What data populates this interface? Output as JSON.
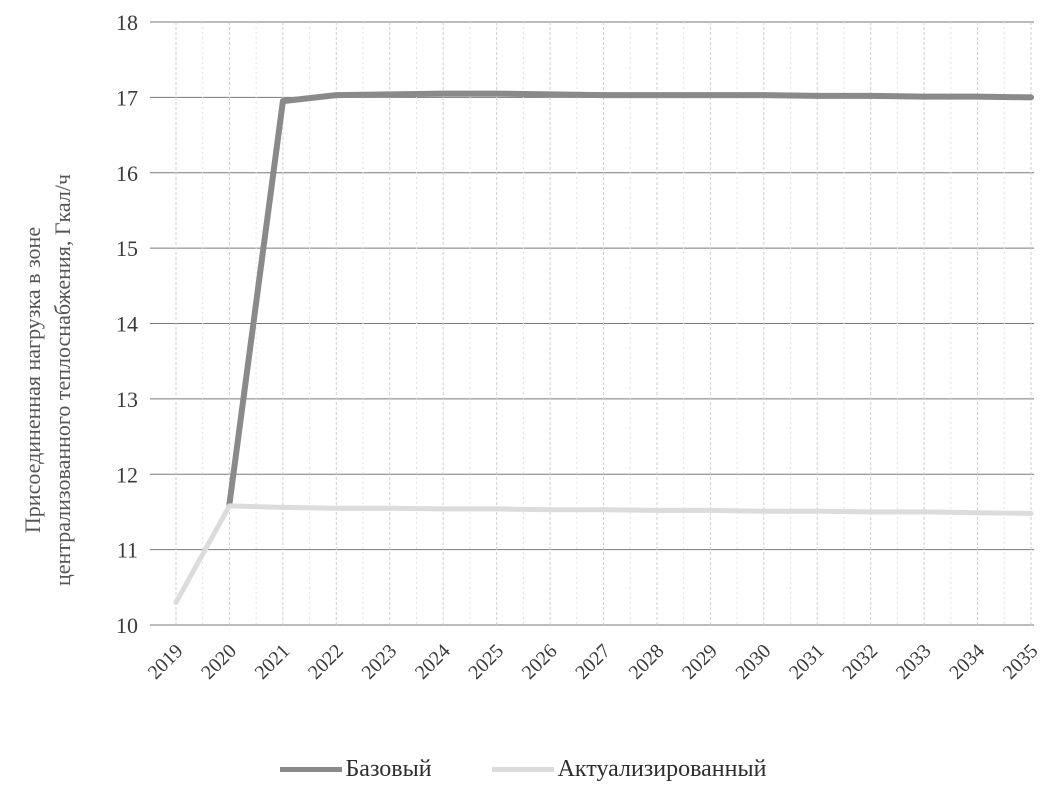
{
  "chart_data": {
    "type": "line",
    "title": "",
    "xlabel": "",
    "ylabel_lines": [
      "Присоединенная нагрузка в зоне",
      "централизованного теплоснабжения, Гкал/ч"
    ],
    "categories": [
      "2019",
      "2020",
      "2021",
      "2022",
      "2023",
      "2024",
      "2025",
      "2026",
      "2027",
      "2028",
      "2029",
      "2030",
      "2031",
      "2032",
      "2033",
      "2034",
      "2035"
    ],
    "ylim": [
      10,
      18
    ],
    "yticks": [
      "10",
      "11",
      "12",
      "13",
      "14",
      "15",
      "16",
      "17",
      "18"
    ],
    "grid": true,
    "legend_position": "bottom",
    "series": [
      {
        "name": "Базовый",
        "color": "#8a8a8a",
        "values": [
          null,
          11.6,
          16.95,
          17.03,
          17.04,
          17.05,
          17.05,
          17.04,
          17.03,
          17.03,
          17.03,
          17.03,
          17.02,
          17.02,
          17.01,
          17.01,
          17.0
        ]
      },
      {
        "name": "Актуализированный",
        "color": "#dcdcdc",
        "values": [
          10.3,
          11.58,
          11.56,
          11.55,
          11.55,
          11.54,
          11.54,
          11.53,
          11.53,
          11.52,
          11.52,
          11.51,
          11.51,
          11.5,
          11.5,
          11.49,
          11.48
        ]
      }
    ]
  }
}
